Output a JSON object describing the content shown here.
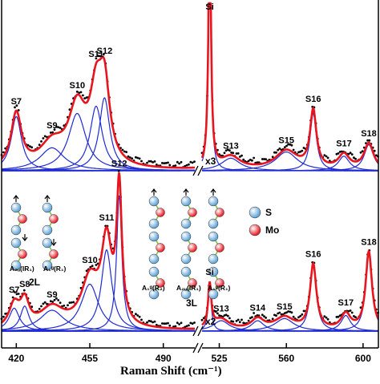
{
  "chart_data": {
    "type": "line",
    "xlabel": "Raman Shift",
    "xunit": "(cm⁻¹)",
    "x_axis_broken": true,
    "x_break_between": [
      505,
      516
    ],
    "xlim_left": [
      413,
      505
    ],
    "xlim_right": [
      516,
      608
    ],
    "tick_labels": [
      "420",
      "455",
      "490",
      "525",
      "560",
      "600"
    ],
    "tick_values": [
      420,
      455,
      490,
      525,
      560,
      600
    ],
    "colors": {
      "fit": "#e8141e",
      "components": "#1f2ad4",
      "data": "#000000",
      "S_atom": "#5a9fd4",
      "Mo_atom": "#e8141e"
    },
    "legend": [
      {
        "label": "S",
        "marker": "blue-sphere"
      },
      {
        "label": "Mo",
        "marker": "red-sphere"
      }
    ],
    "panels": [
      {
        "name": "upper",
        "right_scale_label": "x3",
        "peaks": [
          {
            "label": "S7",
            "x": 420,
            "amp": 0.52,
            "w": 6
          },
          {
            "label": "S9",
            "x": 437,
            "amp": 0.22,
            "w": 14
          },
          {
            "label": "S10",
            "x": 449,
            "amp": 0.55,
            "w": 10
          },
          {
            "label": "S11",
            "x": 458,
            "amp": 0.62,
            "w": 7
          },
          {
            "label": "S12",
            "x": 462,
            "amp": 0.7,
            "w": 6
          },
          {
            "label": "Si",
            "x": 520,
            "amp": 2.4,
            "w": 1.6
          },
          {
            "label": "S13",
            "x": 531,
            "amp": 0.12,
            "w": 12
          },
          {
            "label": "S15",
            "x": 560,
            "amp": 0.18,
            "w": 14
          },
          {
            "label": "S16",
            "x": 574,
            "amp": 0.55,
            "w": 4
          },
          {
            "label": "S17",
            "x": 590,
            "amp": 0.14,
            "w": 7
          },
          {
            "label": "S18",
            "x": 603,
            "amp": 0.25,
            "w": 6
          }
        ]
      },
      {
        "name": "lower",
        "right_scale_label": "x2",
        "peaks": [
          {
            "label": "S7",
            "x": 419,
            "amp": 0.22,
            "w": 6
          },
          {
            "label": "S8",
            "x": 424,
            "amp": 0.24,
            "w": 5
          },
          {
            "label": "S9",
            "x": 437,
            "amp": 0.2,
            "w": 14
          },
          {
            "label": "S10",
            "x": 455,
            "amp": 0.45,
            "w": 10
          },
          {
            "label": "S11",
            "x": 463,
            "amp": 0.78,
            "w": 6
          },
          {
            "label": "S12",
            "x": 469,
            "amp": 1.3,
            "w": 3
          },
          {
            "label": "Si",
            "x": 520,
            "amp": 0.42,
            "w": 2
          },
          {
            "label": "S13",
            "x": 526,
            "amp": 0.1,
            "w": 10
          },
          {
            "label": "S14",
            "x": 545,
            "amp": 0.1,
            "w": 8
          },
          {
            "label": "S15",
            "x": 559,
            "amp": 0.12,
            "w": 12
          },
          {
            "label": "S16",
            "x": 574,
            "amp": 0.62,
            "w": 4
          },
          {
            "label": "S17",
            "x": 591,
            "amp": 0.15,
            "w": 6
          },
          {
            "label": "S18",
            "x": 603,
            "amp": 0.75,
            "w": 4
          }
        ]
      }
    ],
    "inset": {
      "modes_2L": [
        "A₂ᵤ(IR₁)",
        "A₁ᵍ(R₁)"
      ],
      "label_2L": "2L",
      "modes_3L": [
        "A₁ᵍ(R₂)",
        "A₂ᵤ(IR₁)",
        "A₁ᵍ(R₁)"
      ],
      "label_3L": "3L"
    }
  }
}
